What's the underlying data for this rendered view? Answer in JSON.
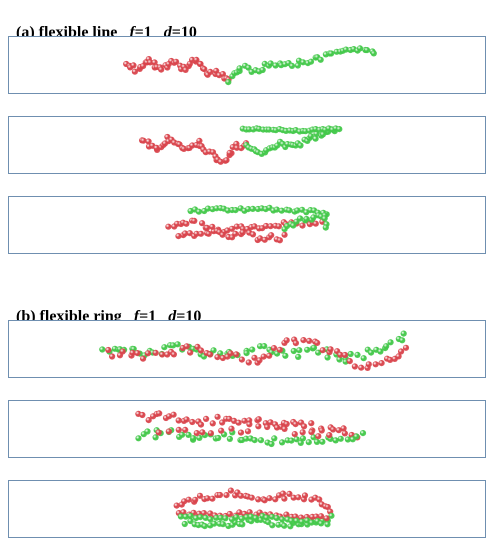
{
  "sections": [
    {
      "label": "(a) flexible line",
      "f_symbol": "f",
      "f_value": "=1",
      "d_symbol": "d",
      "d_value": "=10",
      "panels": [
        {
          "name": "line-snapshot-1"
        },
        {
          "name": "line-snapshot-2"
        },
        {
          "name": "line-snapshot-3"
        }
      ]
    },
    {
      "label": "(b) flexible ring",
      "f_symbol": "f",
      "f_value": "=1",
      "d_symbol": "d",
      "d_value": "=10",
      "panels": [
        {
          "name": "ring-snapshot-1"
        },
        {
          "name": "ring-snapshot-2"
        },
        {
          "name": "ring-snapshot-3"
        }
      ]
    }
  ],
  "colors": {
    "bead_red": "#d9444c",
    "bead_green": "#43c84a",
    "panel_border": "#6f8fb0"
  }
}
